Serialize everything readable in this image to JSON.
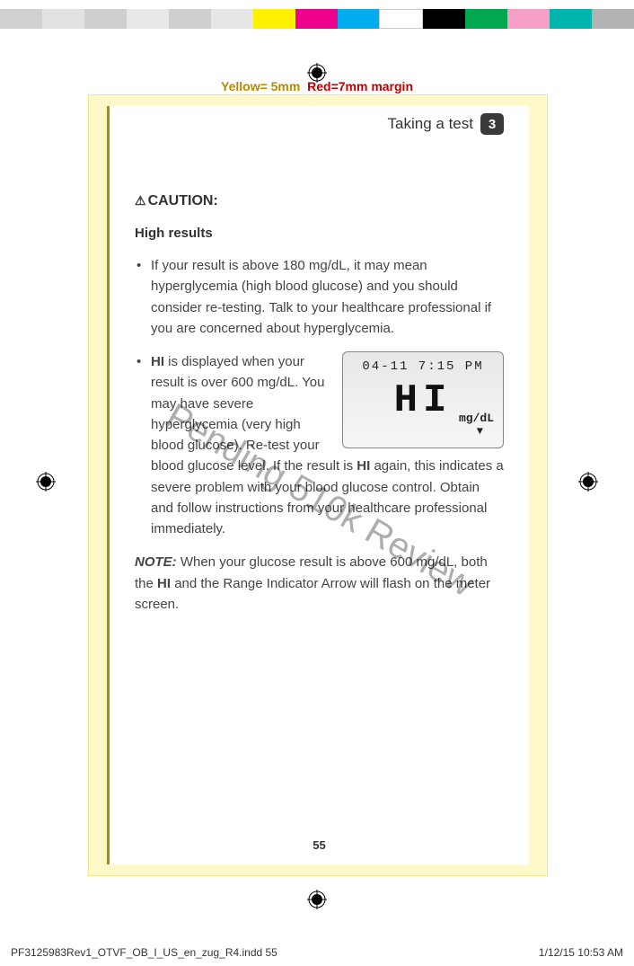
{
  "colorbar": [
    "#d0d0d0",
    "#e2e2e2",
    "#cfcfcf",
    "#e8e8e8",
    "#cfcfcf",
    "#e6e6e6",
    "#fff200",
    "#ec008c",
    "#00adef",
    "#ffffff",
    "#000000",
    "#00a94f",
    "#f6a0c8",
    "#00b5ad",
    "#b3b3b3"
  ],
  "margin_label": {
    "yellow": "Yellow= 5mm",
    "red": "Red=7mm margin"
  },
  "chapter": {
    "title": "Taking a test",
    "num": "3"
  },
  "caution": "CAUTION:",
  "subhead": "High results",
  "bullets": [
    "If your result is above 180 mg/dL, it may mean hyperglycemia (high blood glucose) and you should consider re-testing. Talk to your healthcare professional if you are concerned about hyperglycemia.",
    "<b>HI</b> is displayed when your result is over 600 mg/dL. You may have severe hyperglycemia (very high blood glucose). Re-test your blood glucose level. If the result is <b>HI</b> again, this indicates a severe problem with your blood glucose control. Obtain and follow instructions from your healthcare professional immediately."
  ],
  "note_label": "NOTE:",
  "note_text": " When your glucose result is above 600 mg/dL, both the <b>HI</b> and the Range Indicator Arrow will flash on the meter screen.",
  "lcd": {
    "datetime": "04-11  7:15 PM",
    "reading": "HI",
    "unit": "mg/dL",
    "arrow": "▼"
  },
  "watermark": "Pending 510k Review",
  "page_number": "55",
  "footer": {
    "left": "PF3125983Rev1_OTVF_OB_I_US_en_zug_R4.indd   55",
    "right": "1/12/15   10:53 AM"
  }
}
